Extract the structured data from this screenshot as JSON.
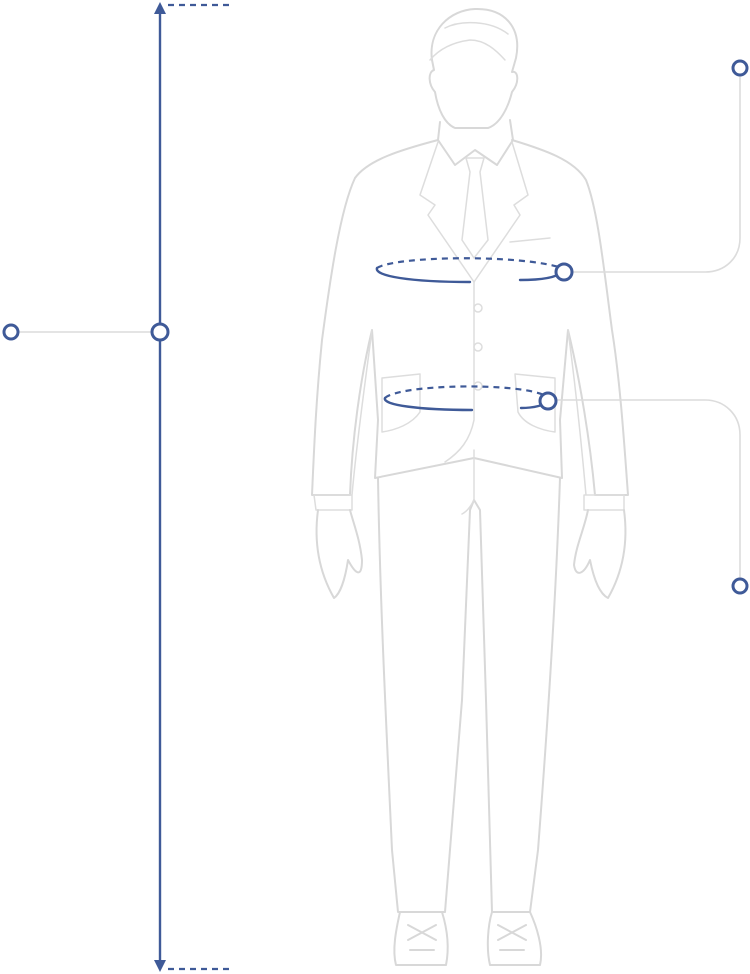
{
  "diagram": {
    "subject": "man-in-suit-figure",
    "accent_color": "#3f5a98",
    "outline_color": "#d8d8d8",
    "measurements": [
      {
        "id": "height",
        "kind": "vertical-line"
      },
      {
        "id": "chest",
        "kind": "circumference"
      },
      {
        "id": "waist",
        "kind": "circumference"
      }
    ],
    "markers": [
      "height-marker",
      "height-line-marker",
      "chest-marker",
      "chest-leader-end",
      "waist-marker",
      "waist-leader-end"
    ]
  }
}
